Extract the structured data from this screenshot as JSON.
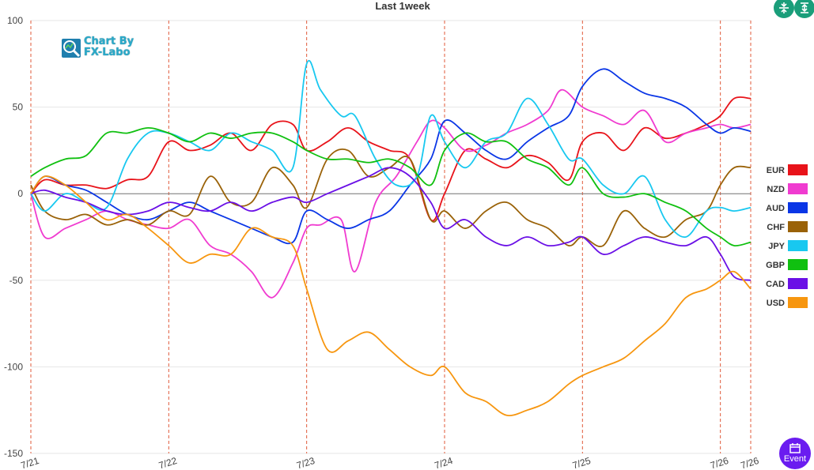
{
  "window": {
    "logo_lines": [
      "Chart By",
      "FX-Labo"
    ],
    "event_label": "Event"
  },
  "colors": {
    "EUR": "#e8131a",
    "NZD": "#f03bd0",
    "AUD": "#0a36e6",
    "CHF": "#9a6208",
    "JPY": "#18c8f0",
    "GBP": "#10c010",
    "CAD": "#6a10e6",
    "USD": "#f7960f"
  },
  "chart_data": {
    "type": "line",
    "title": "Last 1week",
    "xlabel": "",
    "ylabel": "",
    "ylim": [
      -150,
      100
    ],
    "yticks": [
      100,
      50,
      0,
      -50,
      -100,
      -150
    ],
    "xlim": [
      0,
      5.22
    ],
    "x_ticks": [
      {
        "value": 0,
        "label": "7/21"
      },
      {
        "value": 1,
        "label": "7/22"
      },
      {
        "value": 2,
        "label": "7/23"
      },
      {
        "value": 3,
        "label": "7/24"
      },
      {
        "value": 4,
        "label": "7/25"
      },
      {
        "value": 5,
        "label": "7/26"
      },
      {
        "value": 5.22,
        "label": "7/26"
      }
    ],
    "grid": true,
    "legend": "right",
    "series": [
      {
        "name": "EUR",
        "x": [
          0,
          0.1,
          0.25,
          0.4,
          0.55,
          0.7,
          0.85,
          1.0,
          1.15,
          1.3,
          1.45,
          1.6,
          1.75,
          1.9,
          2.0,
          2.15,
          2.3,
          2.45,
          2.6,
          2.75,
          2.9,
          3.0,
          3.15,
          3.3,
          3.45,
          3.6,
          3.75,
          3.9,
          4.0,
          4.15,
          4.3,
          4.45,
          4.6,
          4.75,
          4.9,
          5.0,
          5.1,
          5.22
        ],
        "y": [
          0,
          8,
          5,
          5,
          3,
          8,
          10,
          30,
          25,
          28,
          35,
          25,
          40,
          40,
          25,
          30,
          38,
          30,
          25,
          20,
          -15,
          0,
          25,
          20,
          15,
          22,
          18,
          8,
          30,
          35,
          25,
          38,
          32,
          35,
          40,
          45,
          55,
          55
        ]
      },
      {
        "name": "NZD",
        "x": [
          0,
          0.1,
          0.25,
          0.4,
          0.55,
          0.7,
          0.85,
          1.0,
          1.15,
          1.3,
          1.45,
          1.6,
          1.75,
          1.9,
          2.0,
          2.1,
          2.25,
          2.35,
          2.5,
          2.65,
          2.8,
          2.9,
          3.0,
          3.15,
          3.3,
          3.45,
          3.6,
          3.75,
          3.85,
          4.0,
          4.15,
          4.3,
          4.45,
          4.6,
          4.75,
          4.9,
          5.0,
          5.1,
          5.22
        ],
        "y": [
          0,
          -25,
          -20,
          -15,
          -10,
          -15,
          -18,
          -20,
          -15,
          -30,
          -35,
          -45,
          -60,
          -40,
          -20,
          -18,
          -15,
          -45,
          -5,
          10,
          30,
          42,
          38,
          25,
          28,
          35,
          40,
          48,
          60,
          50,
          45,
          40,
          48,
          30,
          35,
          38,
          40,
          38,
          40
        ]
      },
      {
        "name": "AUD",
        "x": [
          0,
          0.1,
          0.25,
          0.4,
          0.55,
          0.7,
          0.85,
          1.0,
          1.15,
          1.3,
          1.45,
          1.6,
          1.75,
          1.9,
          2.0,
          2.15,
          2.3,
          2.45,
          2.6,
          2.75,
          2.9,
          3.0,
          3.15,
          3.3,
          3.45,
          3.6,
          3.75,
          3.9,
          4.0,
          4.15,
          4.3,
          4.45,
          4.6,
          4.75,
          4.9,
          5.0,
          5.1,
          5.22
        ],
        "y": [
          0,
          10,
          5,
          2,
          -5,
          -12,
          -15,
          -10,
          -5,
          -10,
          -15,
          -20,
          -25,
          -28,
          -10,
          -15,
          -20,
          -15,
          -10,
          5,
          20,
          42,
          35,
          25,
          20,
          30,
          38,
          45,
          62,
          72,
          65,
          58,
          55,
          50,
          40,
          35,
          38,
          36
        ]
      },
      {
        "name": "CHF",
        "x": [
          0,
          0.1,
          0.25,
          0.4,
          0.55,
          0.7,
          0.85,
          1.0,
          1.15,
          1.3,
          1.45,
          1.6,
          1.75,
          1.9,
          2.0,
          2.15,
          2.3,
          2.45,
          2.6,
          2.75,
          2.9,
          3.0,
          3.15,
          3.3,
          3.45,
          3.6,
          3.75,
          3.9,
          4.0,
          4.15,
          4.3,
          4.45,
          4.6,
          4.75,
          4.9,
          5.0,
          5.1,
          5.22
        ],
        "y": [
          5,
          -10,
          -15,
          -12,
          -18,
          -15,
          -18,
          -10,
          -12,
          10,
          -5,
          -5,
          15,
          5,
          -8,
          20,
          25,
          10,
          15,
          20,
          -15,
          -10,
          -20,
          -10,
          -5,
          -15,
          -20,
          -30,
          -25,
          -30,
          -10,
          -20,
          -25,
          -15,
          -10,
          5,
          15,
          15
        ]
      },
      {
        "name": "JPY",
        "x": [
          0,
          0.1,
          0.25,
          0.4,
          0.55,
          0.7,
          0.85,
          1.0,
          1.15,
          1.3,
          1.45,
          1.6,
          1.75,
          1.9,
          2.0,
          2.1,
          2.25,
          2.35,
          2.5,
          2.65,
          2.8,
          2.9,
          3.0,
          3.15,
          3.3,
          3.45,
          3.6,
          3.75,
          3.9,
          4.0,
          4.15,
          4.3,
          4.45,
          4.6,
          4.75,
          4.9,
          5.0,
          5.1,
          5.22
        ],
        "y": [
          0,
          -10,
          0,
          -5,
          -8,
          20,
          35,
          35,
          30,
          25,
          35,
          30,
          25,
          15,
          75,
          60,
          45,
          45,
          20,
          5,
          10,
          45,
          30,
          15,
          30,
          35,
          55,
          40,
          20,
          20,
          5,
          0,
          10,
          -15,
          -25,
          -10,
          -8,
          -10,
          -8
        ]
      },
      {
        "name": "GBP",
        "x": [
          0,
          0.1,
          0.25,
          0.4,
          0.55,
          0.7,
          0.85,
          1.0,
          1.15,
          1.3,
          1.45,
          1.6,
          1.75,
          1.9,
          2.0,
          2.15,
          2.3,
          2.45,
          2.6,
          2.75,
          2.9,
          3.0,
          3.15,
          3.3,
          3.45,
          3.6,
          3.75,
          3.9,
          4.0,
          4.15,
          4.3,
          4.45,
          4.6,
          4.75,
          4.9,
          5.0,
          5.1,
          5.22
        ],
        "y": [
          10,
          15,
          20,
          22,
          35,
          35,
          38,
          35,
          30,
          35,
          32,
          35,
          35,
          30,
          25,
          20,
          20,
          18,
          20,
          15,
          5,
          25,
          35,
          30,
          30,
          20,
          15,
          5,
          15,
          0,
          -2,
          0,
          -5,
          -10,
          -20,
          -25,
          -30,
          -28
        ]
      },
      {
        "name": "CAD",
        "x": [
          0,
          0.1,
          0.25,
          0.4,
          0.55,
          0.7,
          0.85,
          1.0,
          1.15,
          1.3,
          1.45,
          1.6,
          1.75,
          1.9,
          2.0,
          2.15,
          2.3,
          2.45,
          2.6,
          2.75,
          2.9,
          3.0,
          3.15,
          3.3,
          3.45,
          3.6,
          3.75,
          3.9,
          4.0,
          4.15,
          4.3,
          4.45,
          4.6,
          4.75,
          4.9,
          5.0,
          5.1,
          5.22
        ],
        "y": [
          0,
          2,
          -2,
          -5,
          -10,
          -12,
          -10,
          -5,
          -8,
          -10,
          -5,
          -10,
          -5,
          -2,
          -5,
          0,
          5,
          10,
          15,
          10,
          -5,
          -20,
          -15,
          -25,
          -30,
          -25,
          -30,
          -28,
          -25,
          -35,
          -30,
          -25,
          -28,
          -30,
          -25,
          -35,
          -48,
          -50
        ]
      },
      {
        "name": "USD",
        "x": [
          0,
          0.1,
          0.25,
          0.4,
          0.55,
          0.7,
          0.85,
          1.0,
          1.15,
          1.3,
          1.45,
          1.6,
          1.75,
          1.9,
          2.0,
          2.15,
          2.3,
          2.45,
          2.6,
          2.75,
          2.9,
          3.0,
          3.15,
          3.3,
          3.45,
          3.6,
          3.75,
          3.9,
          4.0,
          4.15,
          4.3,
          4.45,
          4.6,
          4.75,
          4.9,
          5.0,
          5.1,
          5.22
        ],
        "y": [
          0,
          10,
          5,
          -5,
          -15,
          -12,
          -20,
          -30,
          -40,
          -35,
          -35,
          -20,
          -25,
          -30,
          -55,
          -90,
          -85,
          -80,
          -90,
          -100,
          -105,
          -100,
          -115,
          -120,
          -128,
          -125,
          -120,
          -110,
          -105,
          -100,
          -95,
          -85,
          -75,
          -60,
          -55,
          -50,
          -45,
          -55
        ]
      }
    ]
  }
}
